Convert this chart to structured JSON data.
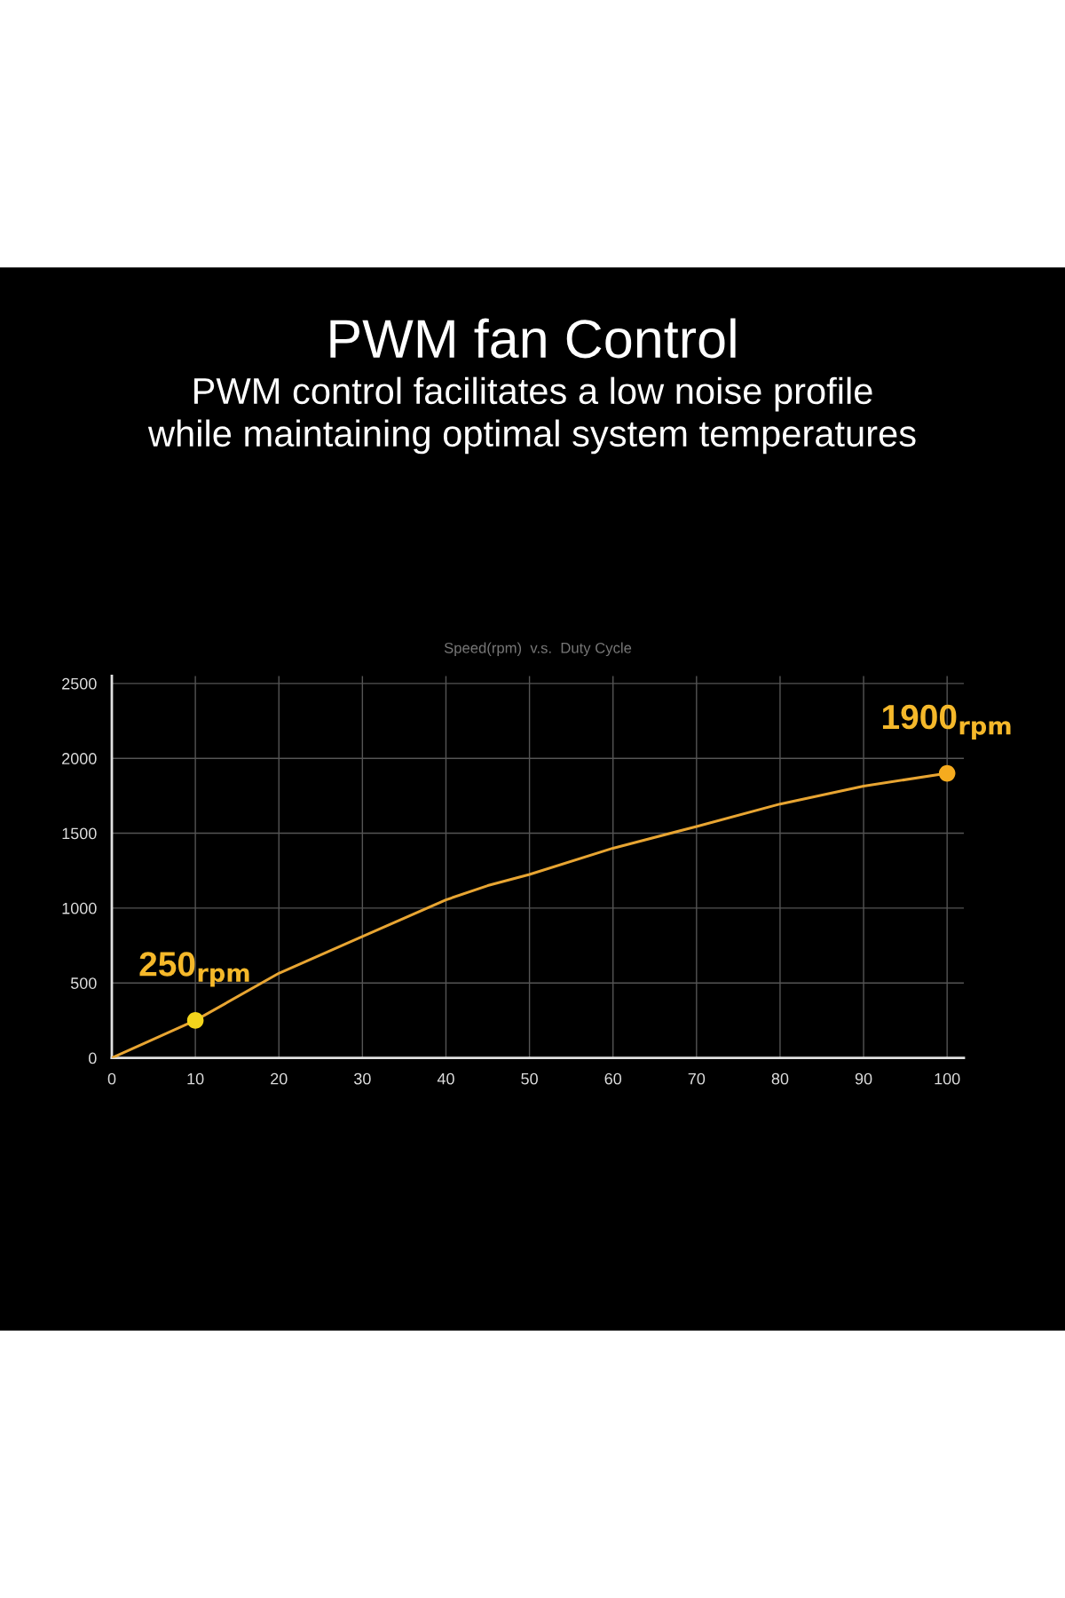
{
  "chart_data": {
    "type": "line",
    "title": "PWM fan Control",
    "subtitle": "PWM control facilitates a low noise profile\nwhile maintaining optimal system temperatures",
    "annotations": [
      "Speed(rpm)  v.s.  Duty Cycle",
      {
        "text": "250$_{rpm}$",
        "x": 10,
        "y": 250
      },
      {
        "text": "1900$_{rpm}$",
        "x": 100,
        "y": 1900
      }
    ],
    "series": [
      {
        "color": "#e8a532",
        "x": [
          0,
          10,
          20,
          30,
          40,
          45,
          50,
          60,
          70,
          80,
          90,
          100
        ],
        "values": [
          0,
          250,
          565,
          810,
          1055,
          1150,
          1225,
          1400,
          1545,
          1695,
          1815,
          1900
        ]
      },
      {
        "type": "scatter",
        "marker": "circle",
        "colors": [
          "#f2d41c",
          "#f5ab1e"
        ],
        "x": [
          10,
          100
        ],
        "values": [
          250,
          1900
        ]
      }
    ],
    "xlim": [
      0,
      102
    ],
    "xticks": [
      0,
      10,
      20,
      30,
      40,
      50,
      60,
      70,
      80,
      90,
      100
    ],
    "ylim": [
      0,
      2550
    ],
    "yticks": [
      0,
      500,
      1000,
      1500,
      2000,
      2500
    ],
    "grid": true
  }
}
